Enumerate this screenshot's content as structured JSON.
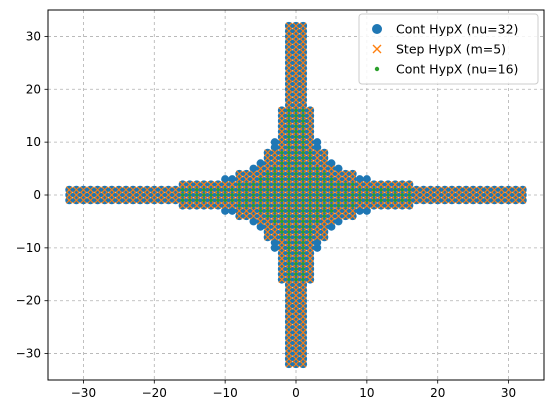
{
  "chart_data": {
    "type": "scatter",
    "title": "",
    "xlabel": "",
    "ylabel": "",
    "xlim": [
      -35,
      35
    ],
    "ylim": [
      -35,
      35
    ],
    "xticks": [
      -30,
      -20,
      -10,
      0,
      10,
      20,
      30
    ],
    "yticks": [
      -30,
      -20,
      -10,
      0,
      10,
      20,
      30
    ],
    "xtick_labels": [
      "−30",
      "−20",
      "−10",
      "0",
      "10",
      "20",
      "30"
    ],
    "ytick_labels": [
      "−30",
      "−20",
      "−10",
      "0",
      "10",
      "20",
      "30"
    ],
    "grid": true,
    "grid_style": "dashed",
    "legend_placement": "top-right",
    "note": "Each series is a plus-shaped set of lattice points: points where min(|x|,|y|) <= the width returned for max(|x|,|y|) by its band table.",
    "series": [
      {
        "name": "Cont HypX (nu=32)",
        "marker": "circle",
        "color": "#1f77b4",
        "bands": [
          {
            "max_extent": 2,
            "half_width": 32
          },
          {
            "max_extent": 3,
            "half_width": 10
          },
          {
            "max_extent": 4,
            "half_width": 8
          },
          {
            "max_extent": 5,
            "half_width": 6
          },
          {
            "max_extent": 6,
            "half_width": 5
          },
          {
            "max_extent": 8,
            "half_width": 4
          },
          {
            "max_extent": 10,
            "half_width": 3
          },
          {
            "max_extent": 16,
            "half_width": 2
          },
          {
            "max_extent": 32,
            "half_width": 1
          }
        ]
      },
      {
        "name": "Step HypX (m=5)",
        "marker": "x",
        "color": "#ff7f0e",
        "bands": [
          {
            "max_extent": 2,
            "half_width": 32
          },
          {
            "max_extent": 4,
            "half_width": 8
          },
          {
            "max_extent": 5,
            "half_width": 6
          },
          {
            "max_extent": 8,
            "half_width": 4
          },
          {
            "max_extent": 16,
            "half_width": 2
          },
          {
            "max_extent": 32,
            "half_width": 1
          }
        ]
      },
      {
        "name": "Cont HypX (nu=16)",
        "marker": "point",
        "color": "#2ca02c",
        "bands": [
          {
            "max_extent": 1,
            "half_width": 16
          },
          {
            "max_extent": 2,
            "half_width": 8
          },
          {
            "max_extent": 3,
            "half_width": 5
          },
          {
            "max_extent": 4,
            "half_width": 4
          },
          {
            "max_extent": 5,
            "half_width": 3
          },
          {
            "max_extent": 8,
            "half_width": 2
          },
          {
            "max_extent": 16,
            "half_width": 1
          }
        ]
      }
    ]
  }
}
